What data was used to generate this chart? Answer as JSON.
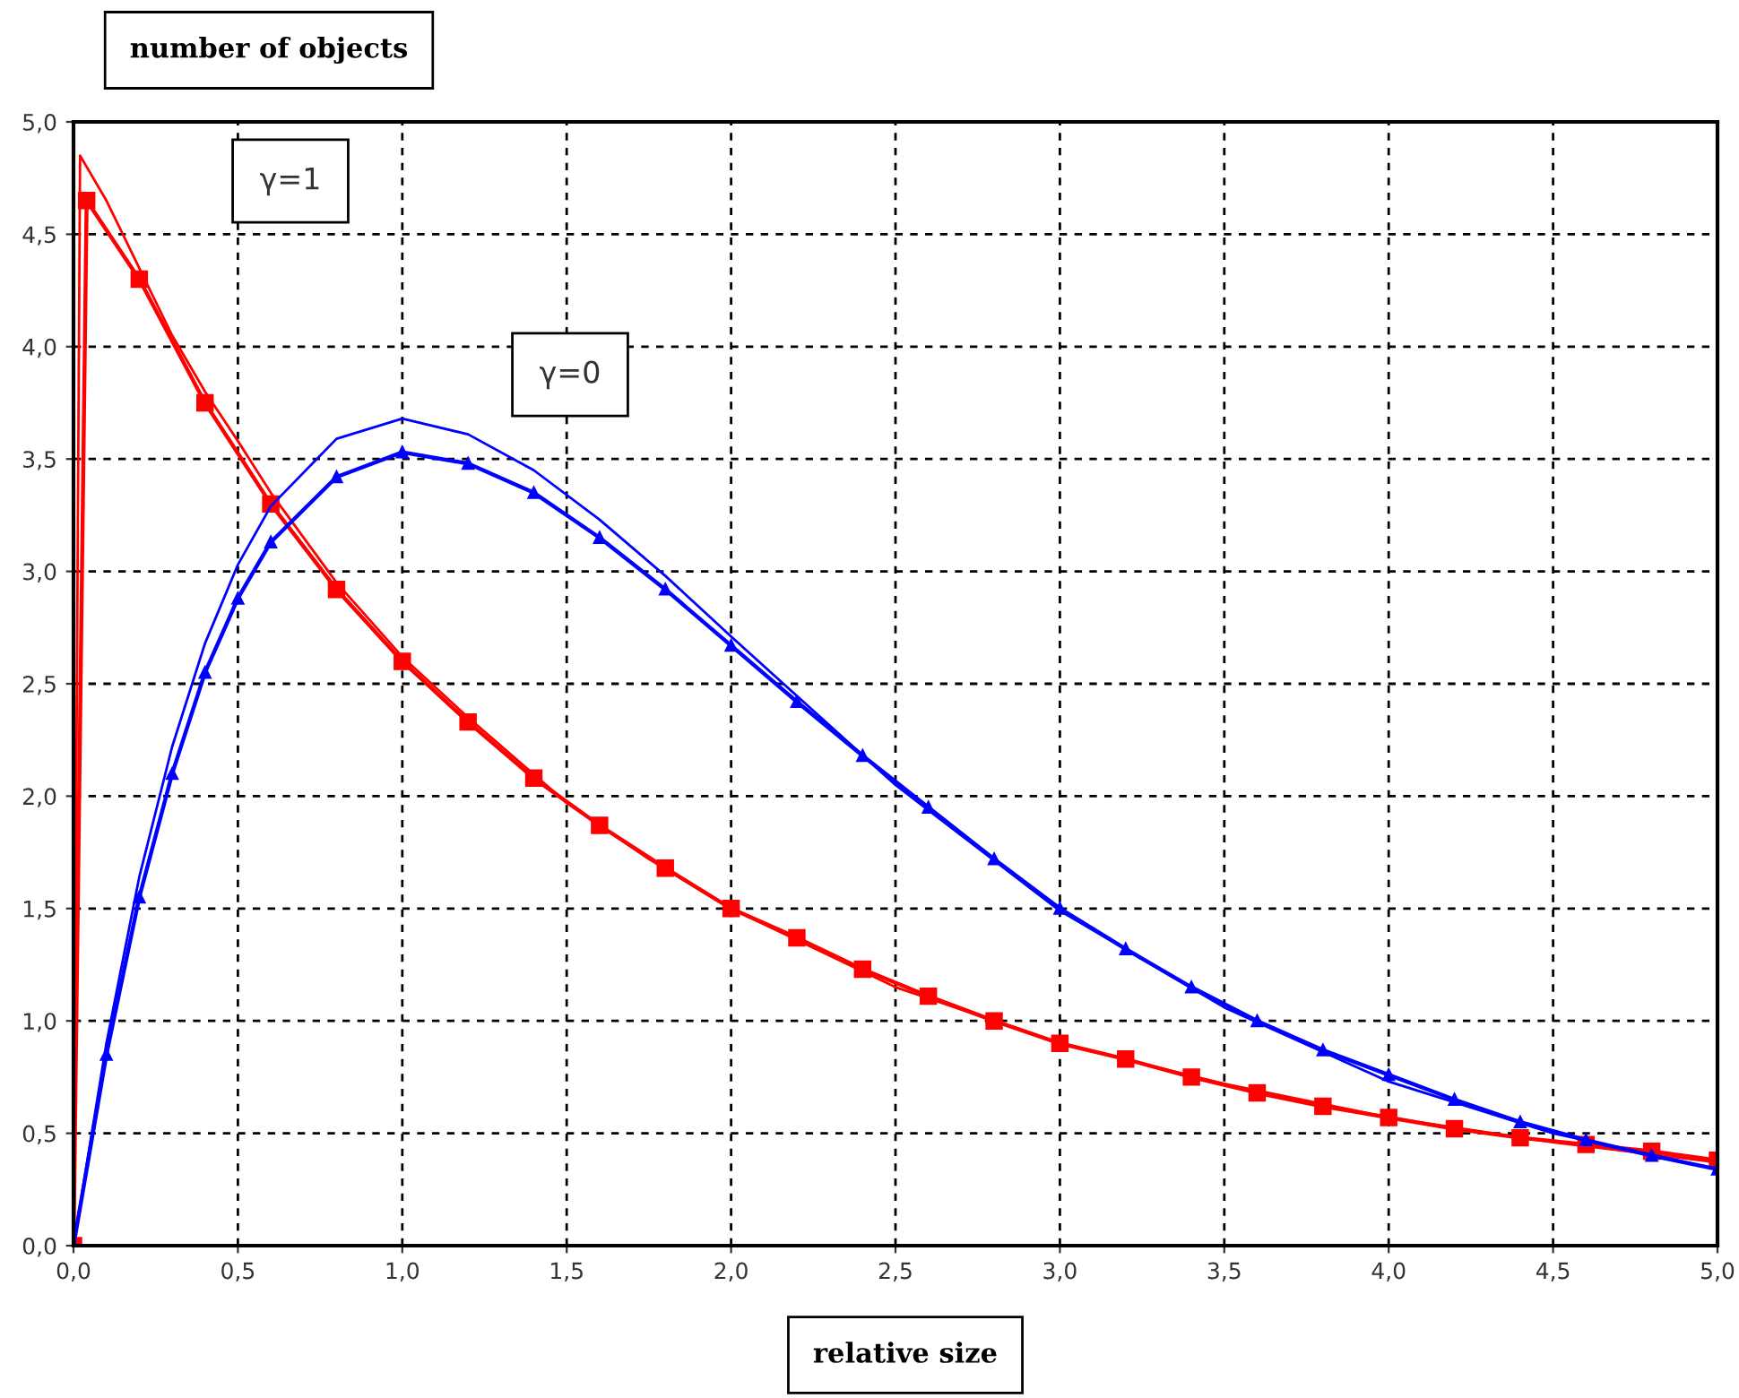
{
  "chart_data": {
    "type": "line",
    "title": "number of objects",
    "xlabel": "relative size",
    "annotations": [
      "γ=1",
      "γ=0"
    ],
    "xlim": [
      0,
      5
    ],
    "ylim": [
      0,
      5
    ],
    "xticks": [
      {
        "value": 0,
        "label": "0,0"
      },
      {
        "value": 0.5,
        "label": "0,5"
      },
      {
        "value": 1,
        "label": "1,0"
      },
      {
        "value": 1.5,
        "label": "1,5"
      },
      {
        "value": 2,
        "label": "2,0"
      },
      {
        "value": 2.5,
        "label": "2,5"
      },
      {
        "value": 3,
        "label": "3,0"
      },
      {
        "value": 3.5,
        "label": "3,5"
      },
      {
        "value": 4,
        "label": "4,0"
      },
      {
        "value": 4.5,
        "label": "4,5"
      },
      {
        "value": 5,
        "label": "5,0"
      }
    ],
    "yticks": [
      {
        "value": 0,
        "label": "0,0"
      },
      {
        "value": 0.5,
        "label": "0,5"
      },
      {
        "value": 1,
        "label": "1,0"
      },
      {
        "value": 1.5,
        "label": "1,5"
      },
      {
        "value": 2,
        "label": "2,0"
      },
      {
        "value": 2.5,
        "label": "2,5"
      },
      {
        "value": 3,
        "label": "3,0"
      },
      {
        "value": 3.5,
        "label": "3,5"
      },
      {
        "value": 4,
        "label": "4,0"
      },
      {
        "value": 4.5,
        "label": "4,5"
      },
      {
        "value": 5,
        "label": "5,0"
      }
    ],
    "grid": true,
    "line_style": "solid",
    "series": [
      {
        "color": "#ff0000",
        "marker": "none",
        "x": [
          0,
          0.02,
          0.1,
          0.2,
          0.3,
          0.4,
          0.5,
          0.6,
          0.8,
          1.0,
          1.2,
          1.5,
          1.75,
          2.0,
          2.5,
          3.0,
          3.5,
          4.0,
          4.5,
          5.0
        ],
        "values": [
          0,
          4.85,
          4.65,
          4.35,
          4.05,
          3.8,
          3.58,
          3.35,
          2.95,
          2.62,
          2.35,
          1.97,
          1.72,
          1.5,
          1.15,
          0.9,
          0.72,
          0.57,
          0.46,
          0.37
        ]
      },
      {
        "color": "#ff0000",
        "marker": "square",
        "x": [
          0,
          0.04,
          0.2,
          0.4,
          0.6,
          0.8,
          1.0,
          1.2,
          1.4,
          1.6,
          1.8,
          2.0,
          2.2,
          2.4,
          2.6,
          2.8,
          3.0,
          3.2,
          3.4,
          3.6,
          3.8,
          4.0,
          4.2,
          4.4,
          4.6,
          4.8,
          5.0
        ],
        "values": [
          0,
          4.65,
          4.3,
          3.75,
          3.3,
          2.92,
          2.6,
          2.33,
          2.08,
          1.87,
          1.68,
          1.5,
          1.37,
          1.23,
          1.11,
          1.0,
          0.9,
          0.83,
          0.75,
          0.68,
          0.62,
          0.57,
          0.52,
          0.48,
          0.45,
          0.42,
          0.38
        ]
      },
      {
        "color": "#0000ff",
        "marker": "none",
        "x": [
          0,
          0.1,
          0.2,
          0.3,
          0.4,
          0.5,
          0.6,
          0.8,
          1.0,
          1.2,
          1.4,
          1.6,
          1.8,
          2.0,
          2.5,
          3.0,
          3.5,
          4.0,
          4.5,
          5.0
        ],
        "values": [
          0,
          0.9,
          1.64,
          2.22,
          2.68,
          3.03,
          3.29,
          3.59,
          3.68,
          3.61,
          3.45,
          3.23,
          2.98,
          2.71,
          2.05,
          1.49,
          1.06,
          0.73,
          0.5,
          0.34
        ]
      },
      {
        "color": "#0000ff",
        "marker": "triangle",
        "x": [
          0,
          0.1,
          0.2,
          0.3,
          0.4,
          0.5,
          0.6,
          0.8,
          1.0,
          1.2,
          1.4,
          1.6,
          1.8,
          2.0,
          2.2,
          2.4,
          2.6,
          2.8,
          3.0,
          3.2,
          3.4,
          3.6,
          3.8,
          4.0,
          4.2,
          4.4,
          4.6,
          4.8,
          5.0
        ],
        "values": [
          0,
          0.85,
          1.55,
          2.1,
          2.55,
          2.88,
          3.13,
          3.42,
          3.53,
          3.48,
          3.35,
          3.15,
          2.92,
          2.67,
          2.42,
          2.18,
          1.95,
          1.72,
          1.5,
          1.32,
          1.15,
          1.0,
          0.87,
          0.76,
          0.65,
          0.55,
          0.47,
          0.4,
          0.34
        ]
      }
    ]
  }
}
